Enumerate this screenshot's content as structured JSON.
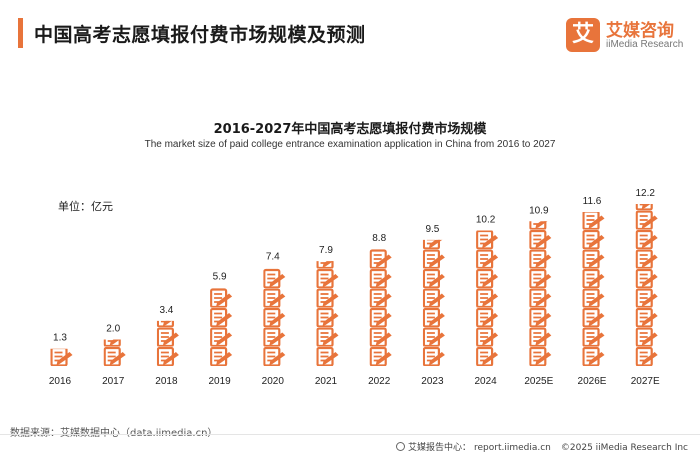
{
  "header": {
    "title": "中国高考志愿填报付费市场规模及预测",
    "accent_color": "#e8743b"
  },
  "logo": {
    "mark": "艾",
    "name_cn": "艾媒咨询",
    "name_en": "iiMedia Research",
    "color": "#e8743b"
  },
  "chart_data": {
    "type": "bar",
    "title": "2016-2027年中国高考志愿填报付费市场规模",
    "subtitle": "The market size of paid college entrance examination application in China from 2016 to 2027",
    "unit_label": "单位：亿元",
    "categories": [
      "2016",
      "2017",
      "2018",
      "2019",
      "2020",
      "2021",
      "2022",
      "2023",
      "2024",
      "2025E",
      "2026E",
      "2027E"
    ],
    "values": [
      1.3,
      2.0,
      3.4,
      5.9,
      7.4,
      7.9,
      8.8,
      9.5,
      10.2,
      10.9,
      11.6,
      12.2
    ],
    "value_labels": [
      "1.3",
      "2.0",
      "3.4",
      "5.9",
      "7.4",
      "7.9",
      "8.8",
      "9.5",
      "10.2",
      "10.9",
      "11.6",
      "12.2"
    ],
    "ylim": [
      0,
      12.2
    ],
    "grid": false,
    "legend": "none",
    "mark_style": "stacked-form-icons",
    "bar_color": "#e8743b"
  },
  "footer": {
    "source": "数据来源：艾媒数据中心（data.iimedia.cn）",
    "center_label": "艾媒报告中心：",
    "url": "report.iimedia.cn",
    "copyright": "©2025  iiMedia Research  Inc"
  }
}
